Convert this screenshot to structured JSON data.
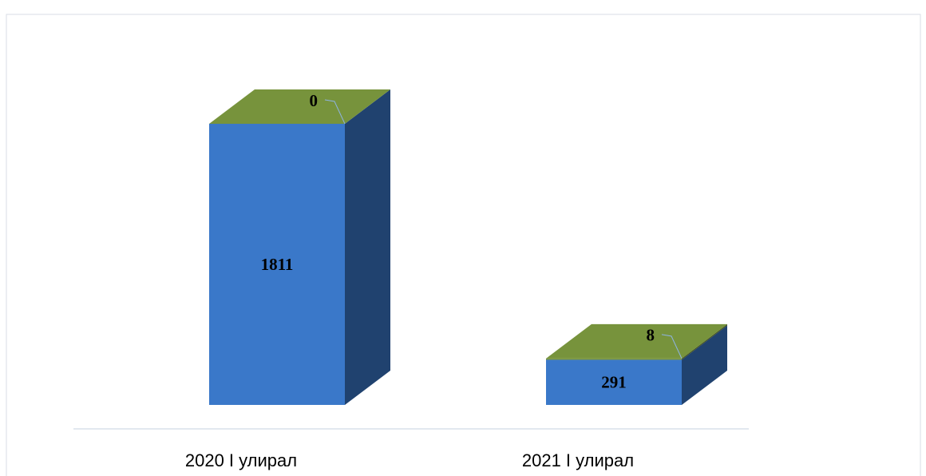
{
  "chart_data": {
    "type": "bar3d_stacked",
    "categories": [
      "2020 I улирал",
      "2021 I улирал"
    ],
    "series": [
      {
        "color": "#3a78c9",
        "values": [
          1811,
          291
        ]
      },
      {
        "color": "#77933c",
        "values": [
          0,
          8
        ]
      }
    ]
  }
}
